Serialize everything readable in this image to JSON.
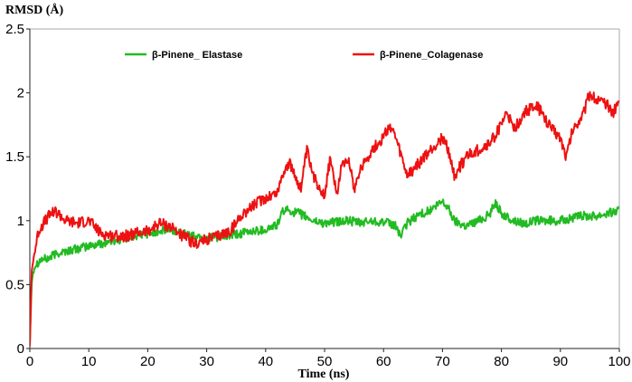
{
  "chart_data": {
    "type": "line",
    "title": "",
    "xlabel": "Time (ns)",
    "ylabel": "RMSD (Å)",
    "xlim": [
      0,
      100
    ],
    "ylim": [
      0,
      2.5
    ],
    "x_ticks": [
      "0",
      "10",
      "20",
      "30",
      "40",
      "50",
      "60",
      "70",
      "80",
      "90",
      "100"
    ],
    "y_ticks": [
      "0",
      "0.5",
      "1",
      "1.5",
      "2",
      "2.5"
    ],
    "grid": false,
    "legend_position": "top",
    "series": [
      {
        "name": "β-Pinene_ Elastase",
        "color": "#22bb22",
        "x": [
          0,
          0.3,
          0.6,
          1,
          2,
          3,
          4,
          5,
          6,
          8,
          10,
          12,
          14,
          16,
          18,
          20,
          22,
          24,
          26,
          28,
          30,
          32,
          34,
          36,
          38,
          40,
          42,
          43,
          44,
          46,
          48,
          50,
          52,
          54,
          56,
          58,
          60,
          62,
          63,
          64,
          66,
          68,
          70,
          71,
          72,
          74,
          76,
          78,
          79,
          80,
          82,
          84,
          86,
          88,
          90,
          92,
          94,
          96,
          98,
          100
        ],
        "y": [
          0.02,
          0.5,
          0.62,
          0.66,
          0.7,
          0.7,
          0.73,
          0.75,
          0.76,
          0.78,
          0.8,
          0.82,
          0.84,
          0.86,
          0.88,
          0.9,
          0.92,
          0.92,
          0.9,
          0.88,
          0.87,
          0.87,
          0.88,
          0.9,
          0.92,
          0.93,
          0.97,
          1.08,
          1.08,
          1.05,
          1.0,
          0.98,
          0.99,
          1.0,
          0.98,
          1.0,
          0.99,
          0.96,
          0.88,
          0.98,
          1.05,
          1.08,
          1.15,
          1.1,
          1.0,
          0.96,
          1.0,
          1.05,
          1.15,
          1.05,
          1.0,
          0.98,
          1.0,
          1.0,
          1.0,
          1.02,
          1.04,
          1.04,
          1.06,
          1.08
        ]
      },
      {
        "name": "β-Pinene_Colagenase",
        "color": "#ee1111",
        "x": [
          0,
          0.3,
          0.6,
          1,
          1.5,
          2,
          3,
          4,
          5,
          6,
          8,
          10,
          12,
          14,
          16,
          18,
          20,
          22,
          24,
          26,
          28,
          30,
          32,
          34,
          35,
          36,
          38,
          40,
          42,
          43,
          44,
          45,
          46,
          47,
          48,
          50,
          51,
          52,
          53,
          54,
          55,
          56,
          58,
          60,
          61,
          62,
          63,
          64,
          66,
          68,
          70,
          71,
          72,
          74,
          76,
          78,
          80,
          81,
          82,
          84,
          86,
          88,
          90,
          91,
          92,
          94,
          95,
          96,
          98,
          99,
          100
        ],
        "y": [
          0.02,
          0.6,
          0.7,
          0.8,
          0.92,
          0.96,
          1.02,
          1.08,
          1.05,
          1.0,
          0.98,
          1.0,
          0.9,
          0.88,
          0.88,
          0.9,
          0.92,
          0.98,
          0.95,
          0.88,
          0.82,
          0.85,
          0.88,
          0.92,
          0.98,
          1.05,
          1.12,
          1.18,
          1.22,
          1.38,
          1.45,
          1.35,
          1.25,
          1.55,
          1.35,
          1.2,
          1.5,
          1.2,
          1.45,
          1.5,
          1.25,
          1.4,
          1.55,
          1.65,
          1.75,
          1.65,
          1.5,
          1.35,
          1.45,
          1.55,
          1.65,
          1.55,
          1.35,
          1.5,
          1.55,
          1.6,
          1.75,
          1.85,
          1.7,
          1.85,
          1.9,
          1.75,
          1.65,
          1.5,
          1.7,
          1.85,
          2.0,
          1.95,
          1.9,
          1.85,
          1.95
        ]
      }
    ]
  }
}
